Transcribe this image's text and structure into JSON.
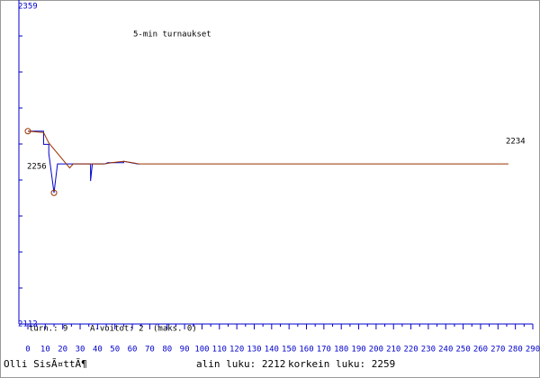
{
  "chart_data": {
    "type": "line",
    "title": "5-min turnaukset",
    "xlim": [
      0,
      290
    ],
    "xticks": [
      0,
      10,
      20,
      30,
      40,
      50,
      60,
      70,
      80,
      90,
      100,
      110,
      120,
      130,
      140,
      150,
      160,
      170,
      180,
      190,
      200,
      210,
      220,
      230,
      240,
      250,
      260,
      270,
      280,
      290
    ],
    "ylim": [
      2112,
      2359
    ],
    "yticks": [
      2112,
      2359
    ],
    "series": [
      {
        "color": "#0000cc",
        "x": [
          0,
          9,
          9,
          12,
          12,
          15,
          17,
          36,
          36,
          37,
          44,
          46,
          55,
          55,
          63,
          64
        ],
        "values": [
          2259,
          2259,
          2249,
          2249,
          2242,
          2212,
          2234,
          2234,
          2221,
          2234,
          2234,
          2235,
          2235,
          2236,
          2234,
          2234
        ]
      },
      {
        "color": "#993300",
        "x": [
          0,
          9,
          12,
          24,
          26,
          44,
          48,
          55,
          60,
          64,
          276
        ],
        "values": [
          2259,
          2258,
          2250,
          2231,
          2234,
          2234,
          2235,
          2236,
          2235,
          2234,
          2234
        ]
      }
    ],
    "markers": {
      "color": "#993300",
      "x": [
        0,
        15
      ],
      "values": [
        2259,
        2212
      ]
    },
    "annotations": [
      "2234",
      "2256"
    ],
    "stats": [
      "turn.: 9",
      "A-voitot: 2",
      "(maks. 0)"
    ],
    "footer": {
      "author": "Olli SisÃ¤ttÃ¶",
      "low": "alin luku: 2212",
      "high": "korkein luku: 2259"
    }
  }
}
